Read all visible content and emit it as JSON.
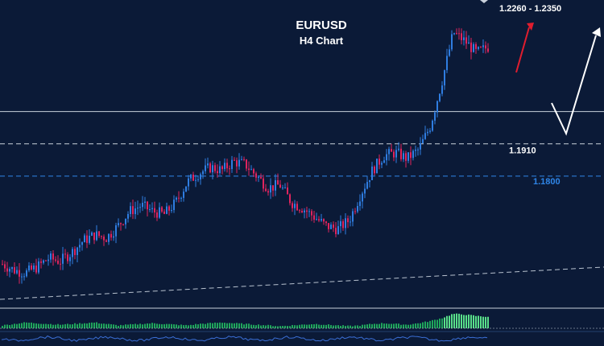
{
  "chart_data": {
    "type": "candlestick",
    "title": "EURUSD",
    "subtitle": "H4 Chart",
    "symbol": "EURUSD",
    "timeframe": "H4",
    "xlabel": "",
    "ylabel": "",
    "ylim": [
      1.135,
      1.24
    ],
    "grid": false,
    "colors": {
      "background": "#0b1a37",
      "up_candle": "#2f7de1",
      "down_candle": "#e0245e",
      "target_arrow_up": "#e11d2e",
      "scenario_arrow": "#ffffff",
      "level_1910": "#c9d1db",
      "level_1800": "#2f86e8",
      "trendline": "#b8c2cf",
      "histogram": "#1fa65b",
      "histogram_peak": "#59e08a"
    },
    "price_path": [
      1.15,
      1.148,
      1.147,
      1.149,
      1.152,
      1.151,
      1.154,
      1.158,
      1.16,
      1.159,
      1.163,
      1.168,
      1.17,
      1.168,
      1.167,
      1.171,
      1.178,
      1.181,
      1.183,
      1.182,
      1.185,
      1.184,
      1.18,
      1.176,
      1.177,
      1.171,
      1.169,
      1.166,
      1.163,
      1.162,
      1.165,
      1.174,
      1.182,
      1.187,
      1.188,
      1.186,
      1.189,
      1.197,
      1.212,
      1.229,
      1.226,
      1.222,
      1.224
    ],
    "levels": [
      {
        "label": "1.1910",
        "value": 1.191,
        "style": "dashed"
      },
      {
        "label": "1.1800",
        "value": 1.18,
        "style": "dashed"
      }
    ],
    "resistance_line": {
      "value": 1.202,
      "style": "solid"
    },
    "target": {
      "label": "1.2260 - 1.2350",
      "low": 1.226,
      "high": 1.235
    },
    "trendline": {
      "style": "dashed",
      "start": 1.138,
      "end": 1.149
    },
    "indicator_histogram": [
      0.2,
      0.3,
      0.4,
      0.35,
      0.3,
      0.25,
      0.3,
      0.35,
      0.4,
      0.3,
      0.2,
      0.25,
      0.3,
      0.35,
      0.3,
      0.25,
      0.2,
      0.3,
      0.35,
      0.4,
      0.35,
      0.3,
      0.25,
      0.2,
      0.15,
      0.2,
      0.25,
      0.3,
      0.25,
      0.2,
      0.15,
      0.2,
      0.3,
      0.35,
      0.3,
      0.25,
      0.35,
      0.5,
      0.7,
      1.0,
      0.95,
      0.85,
      0.8
    ]
  }
}
